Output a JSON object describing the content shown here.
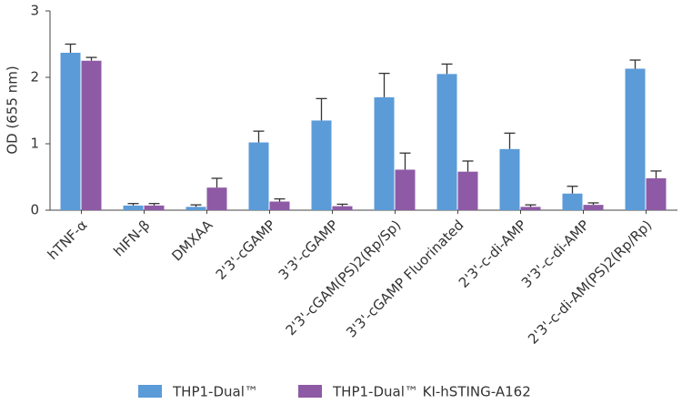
{
  "chart_data": {
    "type": "bar",
    "y_label": "OD (655 nm)",
    "categories": [
      "hTNF-α",
      "hIFN-β",
      "DMXAA",
      "2'3'-cGAMP",
      "3'3'-cGAMP",
      "2'3'-cGAM(PS)2(Rp/Sp)",
      "3'3'-cGAMP Fluorinated",
      "2'3'-c-di-AMP",
      "3'3'-c-di-AMP",
      "2'3'-c-di-AM(PS)2(Rp/Rp)"
    ],
    "series": [
      {
        "name": "THP1-Dual™",
        "color": "#5b9bd8",
        "values": [
          2.37,
          0.07,
          0.05,
          1.02,
          1.35,
          1.7,
          2.05,
          0.92,
          0.25,
          2.13
        ],
        "errors": [
          0.13,
          0.03,
          0.03,
          0.17,
          0.33,
          0.36,
          0.15,
          0.24,
          0.11,
          0.13
        ]
      },
      {
        "name": "THP1-Dual™ KI-hSTING-A162",
        "color": "#8e5aa5",
        "values": [
          2.25,
          0.07,
          0.34,
          0.13,
          0.06,
          0.61,
          0.58,
          0.05,
          0.08,
          0.48
        ],
        "errors": [
          0.05,
          0.03,
          0.14,
          0.04,
          0.03,
          0.25,
          0.16,
          0.03,
          0.03,
          0.11
        ]
      }
    ],
    "ylim": [
      0,
      3
    ],
    "yticks": [
      0,
      1,
      2,
      3
    ]
  }
}
